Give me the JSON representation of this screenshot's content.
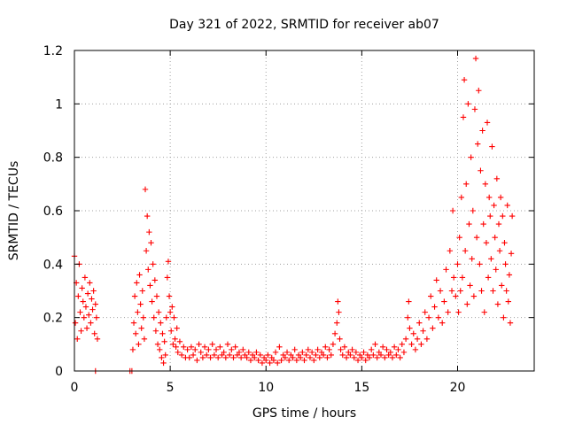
{
  "chart_data": {
    "type": "scatter",
    "title": "Day 321 of 2022, SRMTID for receiver ab07",
    "xlabel": "GPS time / hours",
    "ylabel": "SRMTID / TECUs",
    "xlim": [
      0,
      24
    ],
    "ylim": [
      0,
      1.2
    ],
    "grid": true,
    "marker": "+",
    "marker_color": "#ff0000",
    "xticks": [
      {
        "value": 0,
        "label": "0"
      },
      {
        "value": 5,
        "label": "5"
      },
      {
        "value": 10,
        "label": "10"
      },
      {
        "value": 15,
        "label": "15"
      },
      {
        "value": 20,
        "label": "20"
      }
    ],
    "yticks": [
      {
        "value": 0,
        "label": "0"
      },
      {
        "value": 0.2,
        "label": "0.2"
      },
      {
        "value": 0.4,
        "label": "0.4"
      },
      {
        "value": 0.6,
        "label": "0.6"
      },
      {
        "value": 0.8,
        "label": "0.8"
      },
      {
        "value": 1.0,
        "label": "1"
      },
      {
        "value": 1.2,
        "label": "1.2"
      }
    ],
    "series": [
      {
        "name": "SRMTID ab07",
        "points": [
          [
            0.0,
            0.43
          ],
          [
            0.05,
            0.18
          ],
          [
            0.1,
            0.33
          ],
          [
            0.15,
            0.12
          ],
          [
            0.2,
            0.28
          ],
          [
            0.25,
            0.4
          ],
          [
            0.3,
            0.22
          ],
          [
            0.35,
            0.15
          ],
          [
            0.4,
            0.31
          ],
          [
            0.45,
            0.26
          ],
          [
            0.5,
            0.2
          ],
          [
            0.55,
            0.35
          ],
          [
            0.6,
            0.24
          ],
          [
            0.65,
            0.16
          ],
          [
            0.7,
            0.29
          ],
          [
            0.75,
            0.21
          ],
          [
            0.8,
            0.33
          ],
          [
            0.85,
            0.18
          ],
          [
            0.9,
            0.27
          ],
          [
            0.95,
            0.23
          ],
          [
            1.0,
            0.3
          ],
          [
            1.05,
            0.14
          ],
          [
            1.1,
            0.25
          ],
          [
            1.15,
            0.2
          ],
          [
            1.2,
            0.12
          ],
          [
            1.1,
            0.0
          ],
          [
            2.9,
            0.0
          ],
          [
            3.0,
            0.0
          ],
          [
            3.05,
            0.08
          ],
          [
            3.1,
            0.18
          ],
          [
            3.15,
            0.28
          ],
          [
            3.2,
            0.14
          ],
          [
            3.25,
            0.33
          ],
          [
            3.3,
            0.22
          ],
          [
            3.35,
            0.1
          ],
          [
            3.4,
            0.36
          ],
          [
            3.45,
            0.25
          ],
          [
            3.5,
            0.16
          ],
          [
            3.55,
            0.3
          ],
          [
            3.6,
            0.2
          ],
          [
            3.65,
            0.12
          ],
          [
            3.7,
            0.68
          ],
          [
            3.75,
            0.45
          ],
          [
            3.8,
            0.58
          ],
          [
            3.85,
            0.38
          ],
          [
            3.9,
            0.52
          ],
          [
            3.95,
            0.32
          ],
          [
            4.0,
            0.48
          ],
          [
            4.05,
            0.26
          ],
          [
            4.1,
            0.4
          ],
          [
            4.15,
            0.2
          ],
          [
            4.2,
            0.34
          ],
          [
            4.25,
            0.15
          ],
          [
            4.3,
            0.28
          ],
          [
            4.35,
            0.1
          ],
          [
            4.4,
            0.22
          ],
          [
            4.45,
            0.08
          ],
          [
            4.5,
            0.18
          ],
          [
            4.55,
            0.05
          ],
          [
            4.6,
            0.14
          ],
          [
            4.65,
            0.03
          ],
          [
            4.7,
            0.11
          ],
          [
            4.75,
            0.06
          ],
          [
            4.8,
            0.2
          ],
          [
            4.85,
            0.35
          ],
          [
            4.9,
            0.41
          ],
          [
            4.95,
            0.28
          ],
          [
            5.0,
            0.22
          ],
          [
            5.05,
            0.15
          ],
          [
            5.1,
            0.24
          ],
          [
            5.15,
            0.1
          ],
          [
            5.2,
            0.2
          ],
          [
            5.25,
            0.12
          ],
          [
            5.3,
            0.09
          ],
          [
            5.35,
            0.16
          ],
          [
            5.4,
            0.07
          ],
          [
            5.5,
            0.11
          ],
          [
            5.6,
            0.06
          ],
          [
            5.7,
            0.09
          ],
          [
            5.8,
            0.05
          ],
          [
            5.9,
            0.08
          ],
          [
            6.0,
            0.05
          ],
          [
            6.1,
            0.09
          ],
          [
            6.2,
            0.06
          ],
          [
            6.3,
            0.08
          ],
          [
            6.4,
            0.04
          ],
          [
            6.5,
            0.1
          ],
          [
            6.6,
            0.07
          ],
          [
            6.7,
            0.05
          ],
          [
            6.8,
            0.09
          ],
          [
            6.9,
            0.06
          ],
          [
            7.0,
            0.08
          ],
          [
            7.1,
            0.05
          ],
          [
            7.2,
            0.1
          ],
          [
            7.3,
            0.06
          ],
          [
            7.4,
            0.08
          ],
          [
            7.5,
            0.05
          ],
          [
            7.6,
            0.09
          ],
          [
            7.7,
            0.06
          ],
          [
            7.8,
            0.07
          ],
          [
            7.9,
            0.05
          ],
          [
            8.0,
            0.1
          ],
          [
            8.1,
            0.06
          ],
          [
            8.2,
            0.08
          ],
          [
            8.3,
            0.05
          ],
          [
            8.4,
            0.09
          ],
          [
            8.5,
            0.06
          ],
          [
            8.6,
            0.07
          ],
          [
            8.7,
            0.05
          ],
          [
            8.8,
            0.08
          ],
          [
            8.9,
            0.06
          ],
          [
            9.0,
            0.05
          ],
          [
            9.1,
            0.07
          ],
          [
            9.2,
            0.04
          ],
          [
            9.3,
            0.06
          ],
          [
            9.4,
            0.05
          ],
          [
            9.5,
            0.07
          ],
          [
            9.6,
            0.04
          ],
          [
            9.7,
            0.06
          ],
          [
            9.8,
            0.03
          ],
          [
            9.9,
            0.05
          ],
          [
            10.0,
            0.04
          ],
          [
            10.1,
            0.06
          ],
          [
            10.2,
            0.03
          ],
          [
            10.3,
            0.05
          ],
          [
            10.4,
            0.04
          ],
          [
            10.5,
            0.07
          ],
          [
            10.6,
            0.03
          ],
          [
            10.7,
            0.09
          ],
          [
            10.8,
            0.04
          ],
          [
            10.9,
            0.06
          ],
          [
            11.0,
            0.05
          ],
          [
            11.1,
            0.07
          ],
          [
            11.2,
            0.04
          ],
          [
            11.3,
            0.06
          ],
          [
            11.4,
            0.05
          ],
          [
            11.5,
            0.08
          ],
          [
            11.6,
            0.04
          ],
          [
            11.7,
            0.06
          ],
          [
            11.8,
            0.05
          ],
          [
            11.9,
            0.07
          ],
          [
            12.0,
            0.04
          ],
          [
            12.1,
            0.06
          ],
          [
            12.2,
            0.08
          ],
          [
            12.3,
            0.05
          ],
          [
            12.4,
            0.07
          ],
          [
            12.5,
            0.04
          ],
          [
            12.6,
            0.06
          ],
          [
            12.7,
            0.08
          ],
          [
            12.8,
            0.05
          ],
          [
            12.9,
            0.07
          ],
          [
            13.0,
            0.06
          ],
          [
            13.1,
            0.09
          ],
          [
            13.2,
            0.05
          ],
          [
            13.3,
            0.08
          ],
          [
            13.4,
            0.06
          ],
          [
            13.5,
            0.1
          ],
          [
            13.6,
            0.14
          ],
          [
            13.7,
            0.18
          ],
          [
            13.75,
            0.26
          ],
          [
            13.8,
            0.22
          ],
          [
            13.85,
            0.12
          ],
          [
            13.9,
            0.08
          ],
          [
            14.0,
            0.06
          ],
          [
            14.1,
            0.09
          ],
          [
            14.2,
            0.05
          ],
          [
            14.3,
            0.07
          ],
          [
            14.4,
            0.06
          ],
          [
            14.5,
            0.08
          ],
          [
            14.6,
            0.05
          ],
          [
            14.7,
            0.07
          ],
          [
            14.8,
            0.04
          ],
          [
            14.9,
            0.06
          ],
          [
            15.0,
            0.05
          ],
          [
            15.1,
            0.07
          ],
          [
            15.2,
            0.04
          ],
          [
            15.3,
            0.06
          ],
          [
            15.4,
            0.05
          ],
          [
            15.5,
            0.08
          ],
          [
            15.6,
            0.06
          ],
          [
            15.7,
            0.1
          ],
          [
            15.8,
            0.05
          ],
          [
            15.9,
            0.07
          ],
          [
            16.0,
            0.06
          ],
          [
            16.1,
            0.09
          ],
          [
            16.2,
            0.05
          ],
          [
            16.3,
            0.08
          ],
          [
            16.4,
            0.06
          ],
          [
            16.5,
            0.07
          ],
          [
            16.6,
            0.05
          ],
          [
            16.7,
            0.09
          ],
          [
            16.8,
            0.06
          ],
          [
            16.9,
            0.08
          ],
          [
            17.0,
            0.05
          ],
          [
            17.1,
            0.1
          ],
          [
            17.2,
            0.07
          ],
          [
            17.3,
            0.12
          ],
          [
            17.4,
            0.2
          ],
          [
            17.45,
            0.26
          ],
          [
            17.5,
            0.16
          ],
          [
            17.6,
            0.1
          ],
          [
            17.7,
            0.14
          ],
          [
            17.8,
            0.08
          ],
          [
            17.9,
            0.12
          ],
          [
            18.0,
            0.18
          ],
          [
            18.1,
            0.1
          ],
          [
            18.2,
            0.15
          ],
          [
            18.3,
            0.22
          ],
          [
            18.4,
            0.12
          ],
          [
            18.5,
            0.2
          ],
          [
            18.6,
            0.28
          ],
          [
            18.7,
            0.16
          ],
          [
            18.8,
            0.24
          ],
          [
            18.9,
            0.34
          ],
          [
            19.0,
            0.2
          ],
          [
            19.1,
            0.3
          ],
          [
            19.2,
            0.18
          ],
          [
            19.3,
            0.26
          ],
          [
            19.4,
            0.38
          ],
          [
            19.5,
            0.22
          ],
          [
            19.6,
            0.45
          ],
          [
            19.7,
            0.3
          ],
          [
            19.75,
            0.6
          ],
          [
            19.8,
            0.35
          ],
          [
            19.9,
            0.28
          ],
          [
            20.0,
            0.4
          ],
          [
            20.05,
            0.22
          ],
          [
            20.1,
            0.5
          ],
          [
            20.15,
            0.3
          ],
          [
            20.2,
            0.65
          ],
          [
            20.25,
            0.35
          ],
          [
            20.3,
            0.95
          ],
          [
            20.35,
            1.09
          ],
          [
            20.4,
            0.45
          ],
          [
            20.45,
            0.7
          ],
          [
            20.5,
            0.25
          ],
          [
            20.55,
            1.0
          ],
          [
            20.6,
            0.55
          ],
          [
            20.65,
            0.32
          ],
          [
            20.7,
            0.8
          ],
          [
            20.75,
            0.42
          ],
          [
            20.8,
            0.6
          ],
          [
            20.85,
            0.28
          ],
          [
            20.9,
            0.98
          ],
          [
            20.95,
            1.17
          ],
          [
            21.0,
            0.5
          ],
          [
            21.05,
            0.85
          ],
          [
            21.1,
            1.05
          ],
          [
            21.15,
            0.4
          ],
          [
            21.2,
            0.75
          ],
          [
            21.25,
            0.3
          ],
          [
            21.3,
            0.9
          ],
          [
            21.35,
            0.55
          ],
          [
            21.4,
            0.22
          ],
          [
            21.45,
            0.7
          ],
          [
            21.5,
            0.48
          ],
          [
            21.55,
            0.93
          ],
          [
            21.6,
            0.35
          ],
          [
            21.65,
            0.65
          ],
          [
            21.7,
            0.58
          ],
          [
            21.75,
            0.42
          ],
          [
            21.8,
            0.84
          ],
          [
            21.85,
            0.3
          ],
          [
            21.9,
            0.62
          ],
          [
            21.95,
            0.5
          ],
          [
            22.0,
            0.38
          ],
          [
            22.05,
            0.72
          ],
          [
            22.1,
            0.25
          ],
          [
            22.15,
            0.55
          ],
          [
            22.2,
            0.45
          ],
          [
            22.25,
            0.65
          ],
          [
            22.3,
            0.32
          ],
          [
            22.35,
            0.58
          ],
          [
            22.4,
            0.2
          ],
          [
            22.45,
            0.48
          ],
          [
            22.5,
            0.4
          ],
          [
            22.55,
            0.3
          ],
          [
            22.6,
            0.62
          ],
          [
            22.65,
            0.26
          ],
          [
            22.7,
            0.36
          ],
          [
            22.75,
            0.18
          ],
          [
            22.8,
            0.44
          ],
          [
            22.85,
            0.58
          ]
        ]
      }
    ]
  }
}
